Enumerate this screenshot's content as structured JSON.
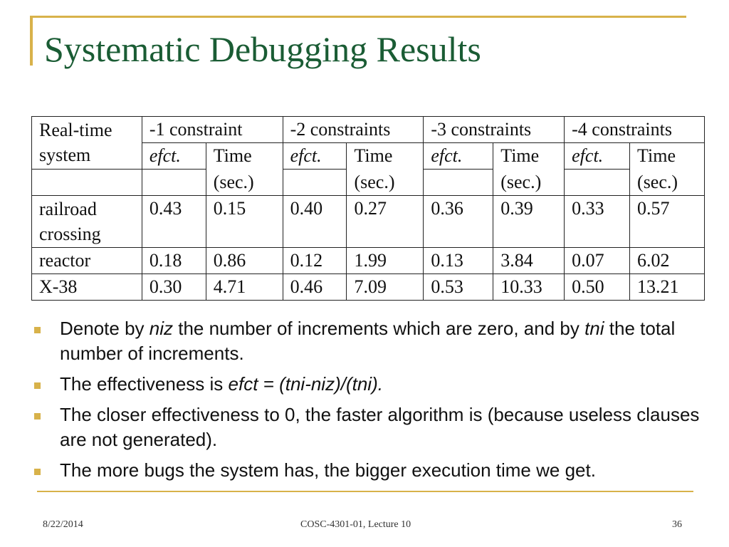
{
  "slide": {
    "title": "Systematic Debugging Results"
  },
  "table": {
    "header": {
      "system_line1": "Real-time",
      "system_line2": "system",
      "groups": [
        "-1  constraint",
        "-2  constraints",
        "-3  constraints",
        "-4  constraints"
      ],
      "efct_label": "efct.",
      "time_label": "Time",
      "time_unit": "(sec.)"
    },
    "rows": [
      {
        "name_line1": "railroad",
        "name_line2": "crossing",
        "values": [
          "0.43",
          "0.15",
          "0.40",
          "0.27",
          "0.36",
          "0.39",
          "0.33",
          "0.57"
        ]
      },
      {
        "name_line1": "reactor",
        "name_line2": "",
        "values": [
          "0.18",
          "0.86",
          "0.12",
          "1.99",
          "0.13",
          "3.84",
          "0.07",
          "6.02"
        ]
      },
      {
        "name_line1": "X-38",
        "name_line2": "",
        "values": [
          "0.30",
          "4.71",
          "0.46",
          "7.09",
          "0.53",
          "10.33",
          "0.50",
          "13.21"
        ]
      }
    ]
  },
  "bullets": {
    "b1_pre": "Denote by ",
    "b1_niz": "niz",
    "b1_mid": " the number of increments which are zero, and by ",
    "b1_tni": "tni",
    "b1_post": " the total number of increments.",
    "b2_pre": "The effectiveness is ",
    "b2_formula": "efct = (tni-niz)/(tni).",
    "b3": "The closer effectiveness to 0, the faster algorithm is (because useless clauses are not generated).",
    "b4": "The more bugs the system has, the bigger execution time we get."
  },
  "footer": {
    "date": "8/22/2014",
    "course": "COSC-4301-01, Lecture 10",
    "page": "36"
  },
  "colors": {
    "title": "#1a5c34",
    "accent": "#d8b24a"
  }
}
